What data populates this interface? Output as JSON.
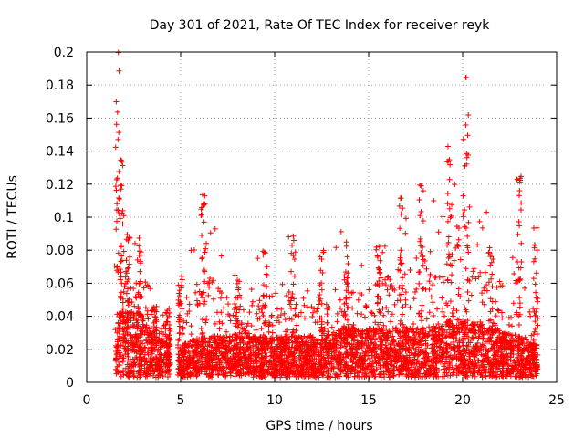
{
  "chart_data": {
    "type": "scatter",
    "title": "Day 301 of 2021, Rate Of TEC Index for receiver reyk",
    "xlabel": "GPS time / hours",
    "ylabel": "ROTI / TECUs",
    "xlim": [
      0,
      25
    ],
    "ylim": [
      0,
      0.2
    ],
    "xticks": [
      "0",
      "5",
      "10",
      "15",
      "20",
      "25"
    ],
    "yticks": [
      "0",
      "0.02",
      "0.04",
      "0.06",
      "0.08",
      "0.1",
      "0.12",
      "0.14",
      "0.16",
      "0.18",
      "0.2"
    ],
    "grid": true,
    "marker": "+",
    "series_color": "#ff0000",
    "density_profile": [
      {
        "x": 1.6,
        "base": 0.03,
        "peak": 0.2
      },
      {
        "x": 1.8,
        "base": 0.05,
        "peak": 0.135
      },
      {
        "x": 2.2,
        "base": 0.04,
        "peak": 0.09
      },
      {
        "x": 2.8,
        "base": 0.04,
        "peak": 0.09
      },
      {
        "x": 3.6,
        "base": 0.025,
        "peak": 0.05
      },
      {
        "x": 4.3,
        "base": 0.02,
        "peak": 0.045
      },
      {
        "x": 5.0,
        "base": 0.02,
        "peak": 0.065
      },
      {
        "x": 6.2,
        "base": 0.025,
        "peak": 0.115
      },
      {
        "x": 8.0,
        "base": 0.025,
        "peak": 0.065
      },
      {
        "x": 9.5,
        "base": 0.025,
        "peak": 0.08
      },
      {
        "x": 11.0,
        "base": 0.025,
        "peak": 0.095
      },
      {
        "x": 12.5,
        "base": 0.025,
        "peak": 0.08
      },
      {
        "x": 13.8,
        "base": 0.03,
        "peak": 0.102
      },
      {
        "x": 15.5,
        "base": 0.03,
        "peak": 0.09
      },
      {
        "x": 16.7,
        "base": 0.03,
        "peak": 0.113
      },
      {
        "x": 17.8,
        "base": 0.03,
        "peak": 0.128
      },
      {
        "x": 19.3,
        "base": 0.035,
        "peak": 0.145
      },
      {
        "x": 20.2,
        "base": 0.035,
        "peak": 0.186
      },
      {
        "x": 21.5,
        "base": 0.03,
        "peak": 0.085
      },
      {
        "x": 23.0,
        "base": 0.025,
        "peak": 0.125
      },
      {
        "x": 23.9,
        "base": 0.02,
        "peak": 0.095
      }
    ]
  }
}
